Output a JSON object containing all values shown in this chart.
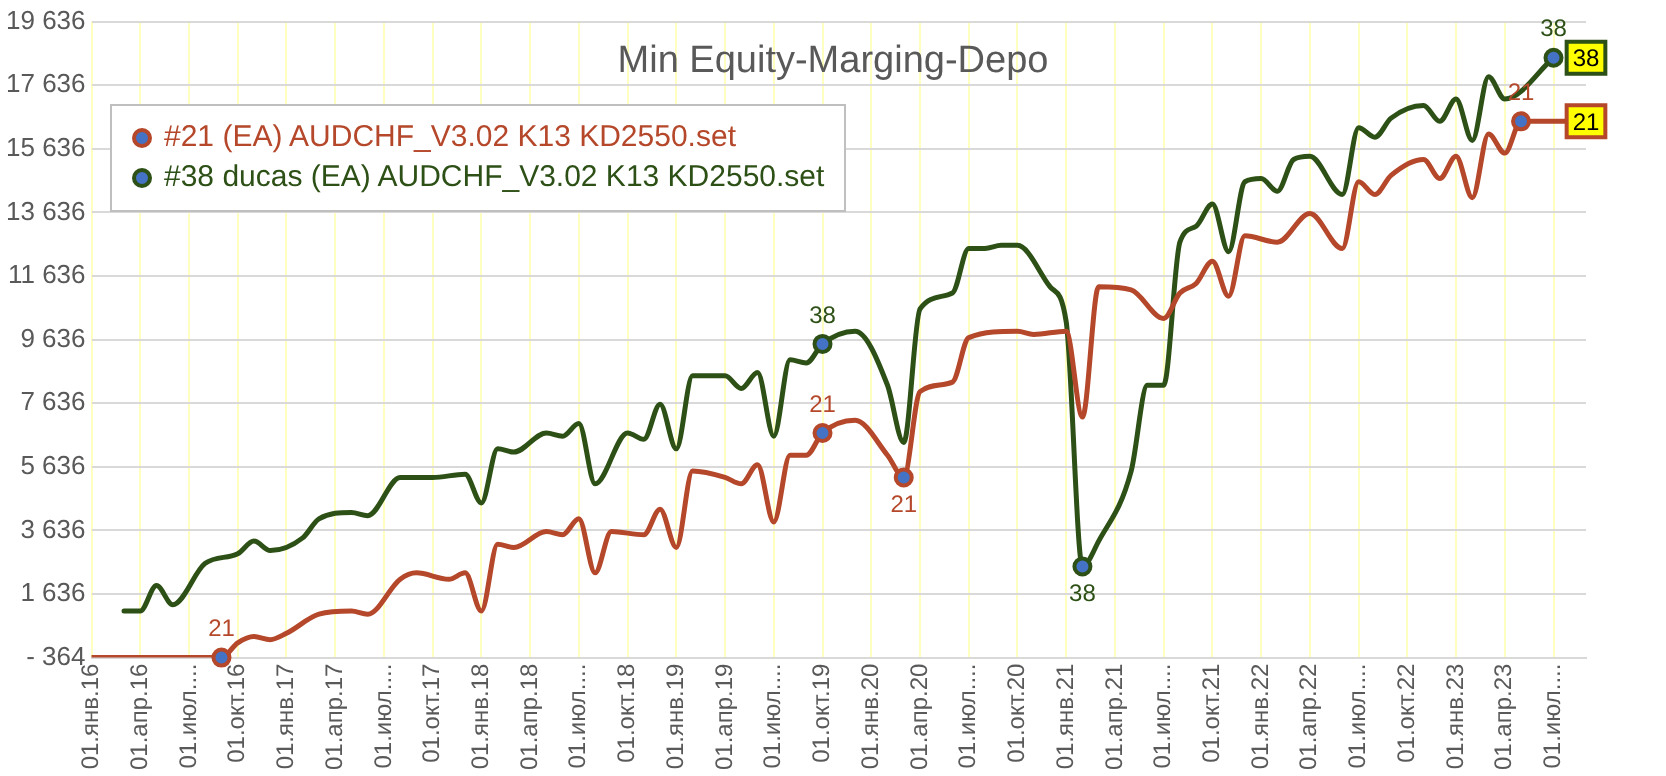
{
  "chart_data": {
    "type": "line",
    "title": "Min Equity-Marging-Depo",
    "xlim": [
      "2016-01",
      "2023-09"
    ],
    "xticks": [
      {
        "value": "2016-01",
        "label": "01.янв.16"
      },
      {
        "value": "2016-04",
        "label": "01.апр.16"
      },
      {
        "value": "2016-07",
        "label": "01.июл...."
      },
      {
        "value": "2016-10",
        "label": "01.окт.16"
      },
      {
        "value": "2017-01",
        "label": "01.янв.17"
      },
      {
        "value": "2017-04",
        "label": "01.апр.17"
      },
      {
        "value": "2017-07",
        "label": "01.июл...."
      },
      {
        "value": "2017-10",
        "label": "01.окт.17"
      },
      {
        "value": "2018-01",
        "label": "01.янв.18"
      },
      {
        "value": "2018-04",
        "label": "01.апр.18"
      },
      {
        "value": "2018-07",
        "label": "01.июл...."
      },
      {
        "value": "2018-10",
        "label": "01.окт.18"
      },
      {
        "value": "2019-01",
        "label": "01.янв.19"
      },
      {
        "value": "2019-04",
        "label": "01.апр.19"
      },
      {
        "value": "2019-07",
        "label": "01.июл...."
      },
      {
        "value": "2019-10",
        "label": "01.окт.19"
      },
      {
        "value": "2020-01",
        "label": "01.янв.20"
      },
      {
        "value": "2020-04",
        "label": "01.апр.20"
      },
      {
        "value": "2020-07",
        "label": "01.июл...."
      },
      {
        "value": "2020-10",
        "label": "01.окт.20"
      },
      {
        "value": "2021-01",
        "label": "01.янв.21"
      },
      {
        "value": "2021-04",
        "label": "01.апр.21"
      },
      {
        "value": "2021-07",
        "label": "01.июл...."
      },
      {
        "value": "2021-10",
        "label": "01.окт.21"
      },
      {
        "value": "2022-01",
        "label": "01.янв.22"
      },
      {
        "value": "2022-04",
        "label": "01.апр.22"
      },
      {
        "value": "2022-07",
        "label": "01.июл...."
      },
      {
        "value": "2022-10",
        "label": "01.окт.22"
      },
      {
        "value": "2023-01",
        "label": "01.янв.23"
      },
      {
        "value": "2023-04",
        "label": "01.апр.23"
      },
      {
        "value": "2023-07",
        "label": "01.июл...."
      }
    ],
    "ylim": [
      -364,
      19636
    ],
    "yticks": [
      {
        "value": -364,
        "label": "- 364"
      },
      {
        "value": 1636,
        "label": "1 636"
      },
      {
        "value": 3636,
        "label": "3 636"
      },
      {
        "value": 5636,
        "label": "5 636"
      },
      {
        "value": 7636,
        "label": "7 636"
      },
      {
        "value": 9636,
        "label": "9 636"
      },
      {
        "value": 11636,
        "label": "11 636"
      },
      {
        "value": 13636,
        "label": "13 636"
      },
      {
        "value": 15636,
        "label": "15 636"
      },
      {
        "value": 17636,
        "label": "17 636"
      },
      {
        "value": 19636,
        "label": "19 636"
      }
    ],
    "grid": true,
    "legend": "top left",
    "series": [
      {
        "name": "#21 (EA) AUDCHF_V3.02 K13 KD2550.set",
        "color": "#b5472a",
        "x": [
          "2016-01",
          "2016-09",
          "2016-10",
          "2016-11",
          "2016-12",
          "2017-01",
          "2017-03",
          "2017-05",
          "2017-06",
          "2017-08",
          "2017-09",
          "2017-11",
          "2017-12",
          "2018-01",
          "2018-02",
          "2018-03",
          "2018-05",
          "2018-06",
          "2018-07",
          "2018-08",
          "2018-09",
          "2018-11",
          "2018-12",
          "2019-01",
          "2019-02",
          "2019-04",
          "2019-05",
          "2019-06",
          "2019-07",
          "2019-08",
          "2019-09",
          "2019-10",
          "2019-12",
          "2020-02",
          "2020-03",
          "2020-04",
          "2020-06",
          "2020-07",
          "2020-10",
          "2020-11",
          "2021-01",
          "2021-02",
          "2021-03",
          "2021-05",
          "2021-07",
          "2021-08",
          "2021-09",
          "2021-10",
          "2021-11",
          "2021-12",
          "2022-02",
          "2022-04",
          "2022-06",
          "2022-07",
          "2022-08",
          "2022-09",
          "2022-11",
          "2022-12",
          "2023-01",
          "2023-02",
          "2023-03",
          "2023-04",
          "2023-05",
          "2023-08"
        ],
        "values": [
          -364,
          -364,
          100,
          300,
          200,
          400,
          1000,
          1100,
          1000,
          2100,
          2300,
          2100,
          2300,
          1100,
          3200,
          3100,
          3600,
          3500,
          4000,
          2300,
          3600,
          3500,
          4300,
          3100,
          5500,
          5300,
          5100,
          5700,
          3900,
          6000,
          6000,
          6700,
          7100,
          6000,
          5300,
          8000,
          8300,
          9700,
          9900,
          9800,
          9900,
          7200,
          11300,
          11200,
          10300,
          11100,
          11400,
          12100,
          11000,
          12900,
          12700,
          13600,
          12500,
          14600,
          14200,
          14800,
          15300,
          14700,
          15400,
          14100,
          16100,
          15500,
          16500,
          16500
        ]
      },
      {
        "name": "#38 ducas (EA) AUDCHF_V3.02 K13 KD2550.set",
        "color": "#2d5016",
        "x": [
          "2016-03",
          "2016-04",
          "2016-05",
          "2016-06",
          "2016-08",
          "2016-10",
          "2016-11",
          "2016-12",
          "2017-02",
          "2017-03",
          "2017-05",
          "2017-06",
          "2017-08",
          "2017-10",
          "2017-12",
          "2018-01",
          "2018-02",
          "2018-03",
          "2018-05",
          "2018-06",
          "2018-07",
          "2018-08",
          "2018-10",
          "2018-11",
          "2018-12",
          "2019-01",
          "2019-02",
          "2019-04",
          "2019-05",
          "2019-06",
          "2019-07",
          "2019-08",
          "2019-09",
          "2019-10",
          "2019-12",
          "2020-02",
          "2020-03",
          "2020-04",
          "2020-06",
          "2020-07",
          "2020-08",
          "2020-09",
          "2020-10",
          "2020-12",
          "2021-01",
          "2021-02",
          "2021-03",
          "2021-05",
          "2021-06",
          "2021-07",
          "2021-08",
          "2021-09",
          "2021-10",
          "2021-11",
          "2021-12",
          "2022-01",
          "2022-02",
          "2022-03",
          "2022-04",
          "2022-06",
          "2022-07",
          "2022-08",
          "2022-09",
          "2022-11",
          "2022-12",
          "2023-01",
          "2023-02",
          "2023-03",
          "2023-04",
          "2023-07"
        ],
        "values": [
          1100,
          1100,
          1900,
          1300,
          2600,
          2900,
          3300,
          3000,
          3400,
          4000,
          4200,
          4100,
          5300,
          5300,
          5400,
          4500,
          6200,
          6100,
          6700,
          6600,
          7000,
          5100,
          6700,
          6500,
          7600,
          6200,
          8500,
          8500,
          8100,
          8600,
          6600,
          9000,
          8900,
          9500,
          9900,
          8200,
          6400,
          10600,
          11100,
          12500,
          12500,
          12600,
          12600,
          11300,
          10200,
          2500,
          3300,
          5500,
          8200,
          8200,
          12700,
          13200,
          13900,
          12400,
          14600,
          14700,
          14300,
          15300,
          15400,
          14200,
          16300,
          16000,
          16600,
          17000,
          16500,
          17200,
          15900,
          17900,
          17200,
          18500
        ]
      }
    ],
    "annotations": [
      {
        "text": "21",
        "x": "2016-09",
        "y": -364
      },
      {
        "text": "21",
        "x": "2019-10",
        "y": 6700
      },
      {
        "text": "21",
        "x": "2020-03",
        "y": 5300
      },
      {
        "text": "21",
        "x": "2023-05",
        "y": 16500
      },
      {
        "text": "38",
        "x": "2019-10",
        "y": 9500
      },
      {
        "text": "38",
        "x": "2021-02",
        "y": 2500
      },
      {
        "text": "38",
        "x": "2023-07",
        "y": 18500
      },
      {
        "text": "38",
        "x": "2023-09",
        "y": 18500
      },
      {
        "text": "21",
        "x": "2023-09",
        "y": 16500
      }
    ]
  }
}
